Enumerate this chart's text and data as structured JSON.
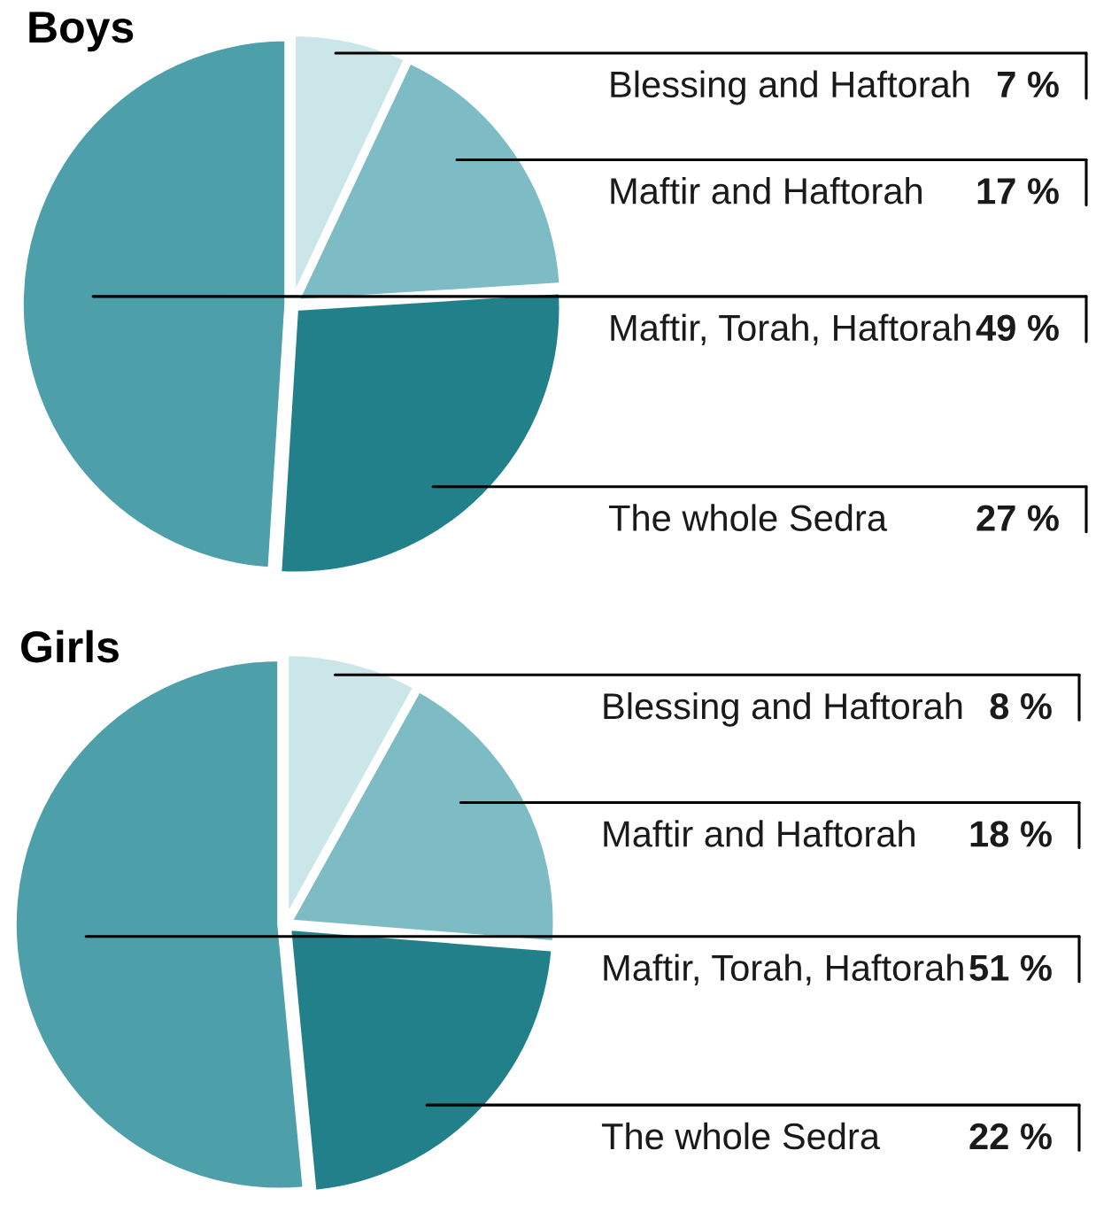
{
  "chart_data": [
    {
      "type": "pie",
      "title": "Boys",
      "categories": [
        "Blessing and Haftorah",
        "Maftir and Haftorah",
        "The whole Sedra",
        "Maftir, Torah, Haftorah"
      ],
      "values": [
        7,
        17,
        27,
        49
      ],
      "colors": [
        "#cbe6e8",
        "#7dbcc4",
        "#22808b",
        "#4d9fa9"
      ],
      "value_labels": [
        "7 %",
        "17 %",
        "27 %",
        "49 %"
      ]
    },
    {
      "type": "pie",
      "title": "Girls",
      "categories": [
        "Blessing and Haftorah",
        "Maftir and Haftorah",
        "The whole Sedra",
        "Maftir, Torah, Haftorah"
      ],
      "values": [
        8,
        18,
        22,
        51
      ],
      "colors": [
        "#cbe6e8",
        "#7dbcc4",
        "#22808b",
        "#4d9fa9"
      ],
      "value_labels": [
        "8 %",
        "18 %",
        "22 %",
        "51 %"
      ]
    }
  ]
}
